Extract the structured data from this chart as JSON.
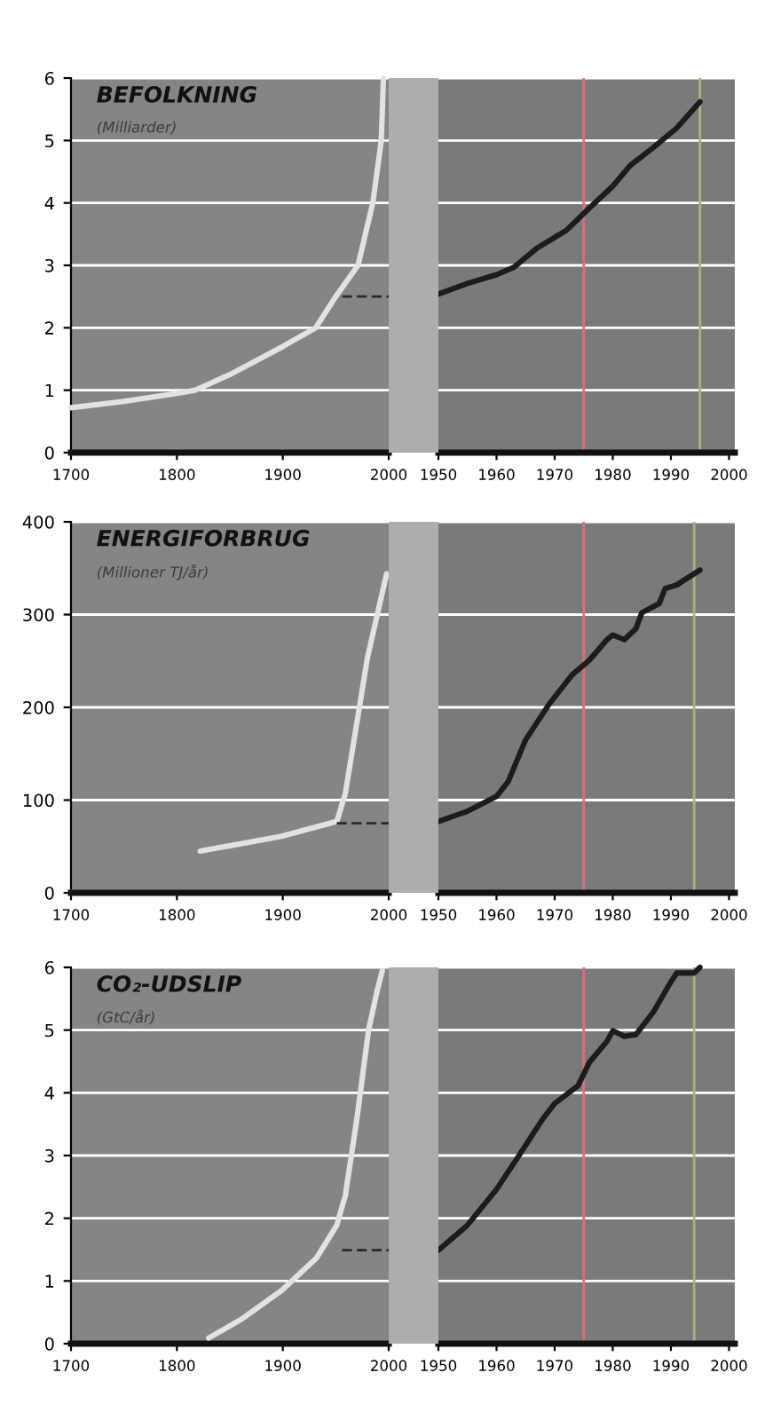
{
  "chart_data": [
    {
      "type": "line",
      "title": "BEFOLKNING",
      "subtitle": "(Milliarder)",
      "xlim": [
        1700,
        2000
      ],
      "xticks": [
        1700,
        1800,
        1900,
        2000
      ],
      "ylim": [
        0,
        6
      ],
      "yticks": [
        0,
        1,
        2,
        3,
        4,
        5,
        6
      ],
      "grid": "y",
      "tick_labels": true,
      "series": [
        {
          "color": "#e2e2e2",
          "x": [
            1700,
            1750,
            1800,
            1817,
            1850,
            1900,
            1931,
            1950,
            1971,
            1985,
            1993,
            1995
          ],
          "values": [
            0.72,
            0.82,
            0.95,
            1.0,
            1.25,
            1.7,
            2.0,
            2.5,
            3.0,
            4.0,
            5.0,
            6.0
          ]
        },
        {
          "color": "#2a2a2a",
          "line_style": "dashed",
          "x": [
            1956,
            2000
          ],
          "values": [
            2.5,
            2.5
          ]
        }
      ]
    },
    {
      "type": "line",
      "xlim": [
        1950,
        2001
      ],
      "xticks": [
        1950,
        1960,
        1970,
        1980,
        1990,
        2000
      ],
      "ylim": [
        0,
        6
      ],
      "grid": "y",
      "tick_labels": "x",
      "ref_lines": [
        {
          "axis": "x",
          "value": 1975,
          "color": "#d87272"
        },
        {
          "axis": "x",
          "value": 1995,
          "color": "#a8b478"
        }
      ],
      "series": [
        {
          "color": "#1c1c1c",
          "x": [
            1950,
            1955,
            1960,
            1963,
            1967,
            1972,
            1976,
            1980,
            1983,
            1987,
            1991,
            1995
          ],
          "values": [
            2.54,
            2.71,
            2.85,
            2.97,
            3.28,
            3.56,
            3.92,
            4.27,
            4.6,
            4.89,
            5.2,
            5.62
          ]
        }
      ]
    },
    {
      "type": "line",
      "title": "ENERGIFORBRUG",
      "subtitle": "(Millioner TJ/år)",
      "xlim": [
        1700,
        2000
      ],
      "xticks": [
        1700,
        1800,
        1900,
        2000
      ],
      "ylim": [
        0,
        400
      ],
      "yticks": [
        0,
        100,
        200,
        300,
        400
      ],
      "grid": "y",
      "tick_labels": true,
      "series": [
        {
          "color": "#e2e2e2",
          "x": [
            1822,
            1899,
            1951,
            1959,
            1980,
            1998
          ],
          "values": [
            45,
            61,
            77,
            107,
            254,
            344
          ]
        },
        {
          "color": "#2a2a2a",
          "line_style": "dashed",
          "x": [
            1951,
            2000
          ],
          "values": [
            75,
            75
          ]
        }
      ]
    },
    {
      "type": "line",
      "xlim": [
        1950,
        2001
      ],
      "xticks": [
        1950,
        1960,
        1970,
        1980,
        1990,
        2000
      ],
      "ylim": [
        0,
        400
      ],
      "grid": "y",
      "tick_labels": "x",
      "ref_lines": [
        {
          "axis": "x",
          "value": 1975,
          "color": "#d87272"
        },
        {
          "axis": "x",
          "value": 1994,
          "color": "#a8b478"
        }
      ],
      "series": [
        {
          "color": "#1c1c1c",
          "x": [
            1950,
            1955,
            1960,
            1962,
            1965,
            1969,
            1973,
            1976,
            1979,
            1980,
            1982,
            1984,
            1985,
            1988,
            1989,
            1991,
            1993,
            1995
          ],
          "values": [
            77,
            88,
            104,
            120,
            165,
            203,
            235,
            251,
            273,
            278,
            273,
            285,
            302,
            312,
            328,
            332,
            340,
            348
          ]
        }
      ]
    },
    {
      "type": "line",
      "title": "CO₂-UDSLIP",
      "subtitle": "(GtC/år)",
      "xlim": [
        1700,
        2000
      ],
      "xticks": [
        1700,
        1800,
        1900,
        2000
      ],
      "ylim": [
        0,
        6
      ],
      "yticks": [
        0,
        1,
        2,
        3,
        4,
        5,
        6
      ],
      "grid": "y",
      "tick_labels": true,
      "series": [
        {
          "color": "#e2e2e2",
          "x": [
            1830,
            1860,
            1899,
            1932,
            1951,
            1959,
            1970,
            1981,
            1989,
            1994
          ],
          "values": [
            0.09,
            0.38,
            0.85,
            1.37,
            1.89,
            2.36,
            3.59,
            5.0,
            5.62,
            5.95
          ]
        },
        {
          "color": "#2a2a2a",
          "line_style": "dashed",
          "x": [
            1956,
            2000
          ],
          "values": [
            1.49,
            1.49
          ]
        }
      ]
    },
    {
      "type": "line",
      "xlim": [
        1950,
        2001
      ],
      "xticks": [
        1950,
        1960,
        1970,
        1980,
        1990,
        2000
      ],
      "ylim": [
        0,
        6
      ],
      "grid": "y",
      "tick_labels": "x",
      "ref_lines": [
        {
          "axis": "x",
          "value": 1975,
          "color": "#d87272"
        },
        {
          "axis": "x",
          "value": 1994,
          "color": "#a8b478"
        }
      ],
      "series": [
        {
          "color": "#1c1c1c",
          "x": [
            1950,
            1955,
            1960,
            1964,
            1968,
            1970,
            1974,
            1976,
            1979,
            1980,
            1982,
            1984,
            1987,
            1990,
            1991,
            1994,
            1995
          ],
          "values": [
            1.49,
            1.89,
            2.46,
            3.02,
            3.59,
            3.83,
            4.11,
            4.49,
            4.82,
            4.99,
            4.9,
            4.93,
            5.29,
            5.77,
            5.91,
            5.91,
            6.0
          ]
        }
      ]
    }
  ]
}
